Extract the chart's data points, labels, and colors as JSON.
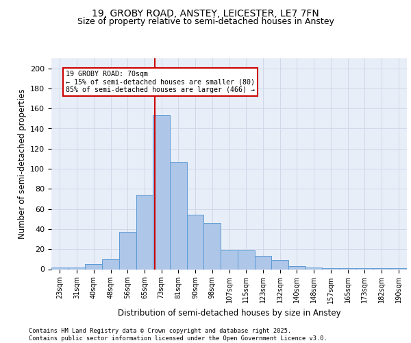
{
  "title_line1": "19, GROBY ROAD, ANSTEY, LEICESTER, LE7 7FN",
  "title_line2": "Size of property relative to semi-detached houses in Anstey",
  "xlabel": "Distribution of semi-detached houses by size in Anstey",
  "ylabel": "Number of semi-detached properties",
  "footnote1": "Contains HM Land Registry data © Crown copyright and database right 2025.",
  "footnote2": "Contains public sector information licensed under the Open Government Licence v3.0.",
  "bar_labels": [
    "23sqm",
    "31sqm",
    "40sqm",
    "48sqm",
    "56sqm",
    "65sqm",
    "73sqm",
    "81sqm",
    "90sqm",
    "98sqm",
    "107sqm",
    "115sqm",
    "123sqm",
    "132sqm",
    "140sqm",
    "148sqm",
    "157sqm",
    "165sqm",
    "173sqm",
    "182sqm",
    "190sqm"
  ],
  "bar_values": [
    2,
    2,
    5,
    10,
    37,
    74,
    153,
    107,
    54,
    46,
    19,
    19,
    13,
    9,
    3,
    2,
    1,
    1,
    1,
    1,
    1
  ],
  "bar_color": "#aec6e8",
  "bar_edge_color": "#5b9bd5",
  "annotation_title": "19 GROBY ROAD: 70sqm",
  "annotation_line1": "← 15% of semi-detached houses are smaller (80)",
  "annotation_line2": "85% of semi-detached houses are larger (466) →",
  "annotation_box_color": "#ffffff",
  "annotation_box_edge_color": "#cc0000",
  "vline_color": "#cc0000",
  "ylim": [
    0,
    210
  ],
  "yticks": [
    0,
    20,
    40,
    60,
    80,
    100,
    120,
    140,
    160,
    180,
    200
  ],
  "grid_color": "#d0d8e8",
  "background_color": "#e8eef8",
  "fig_background": "#ffffff",
  "title_fontsize": 10,
  "subtitle_fontsize": 9
}
